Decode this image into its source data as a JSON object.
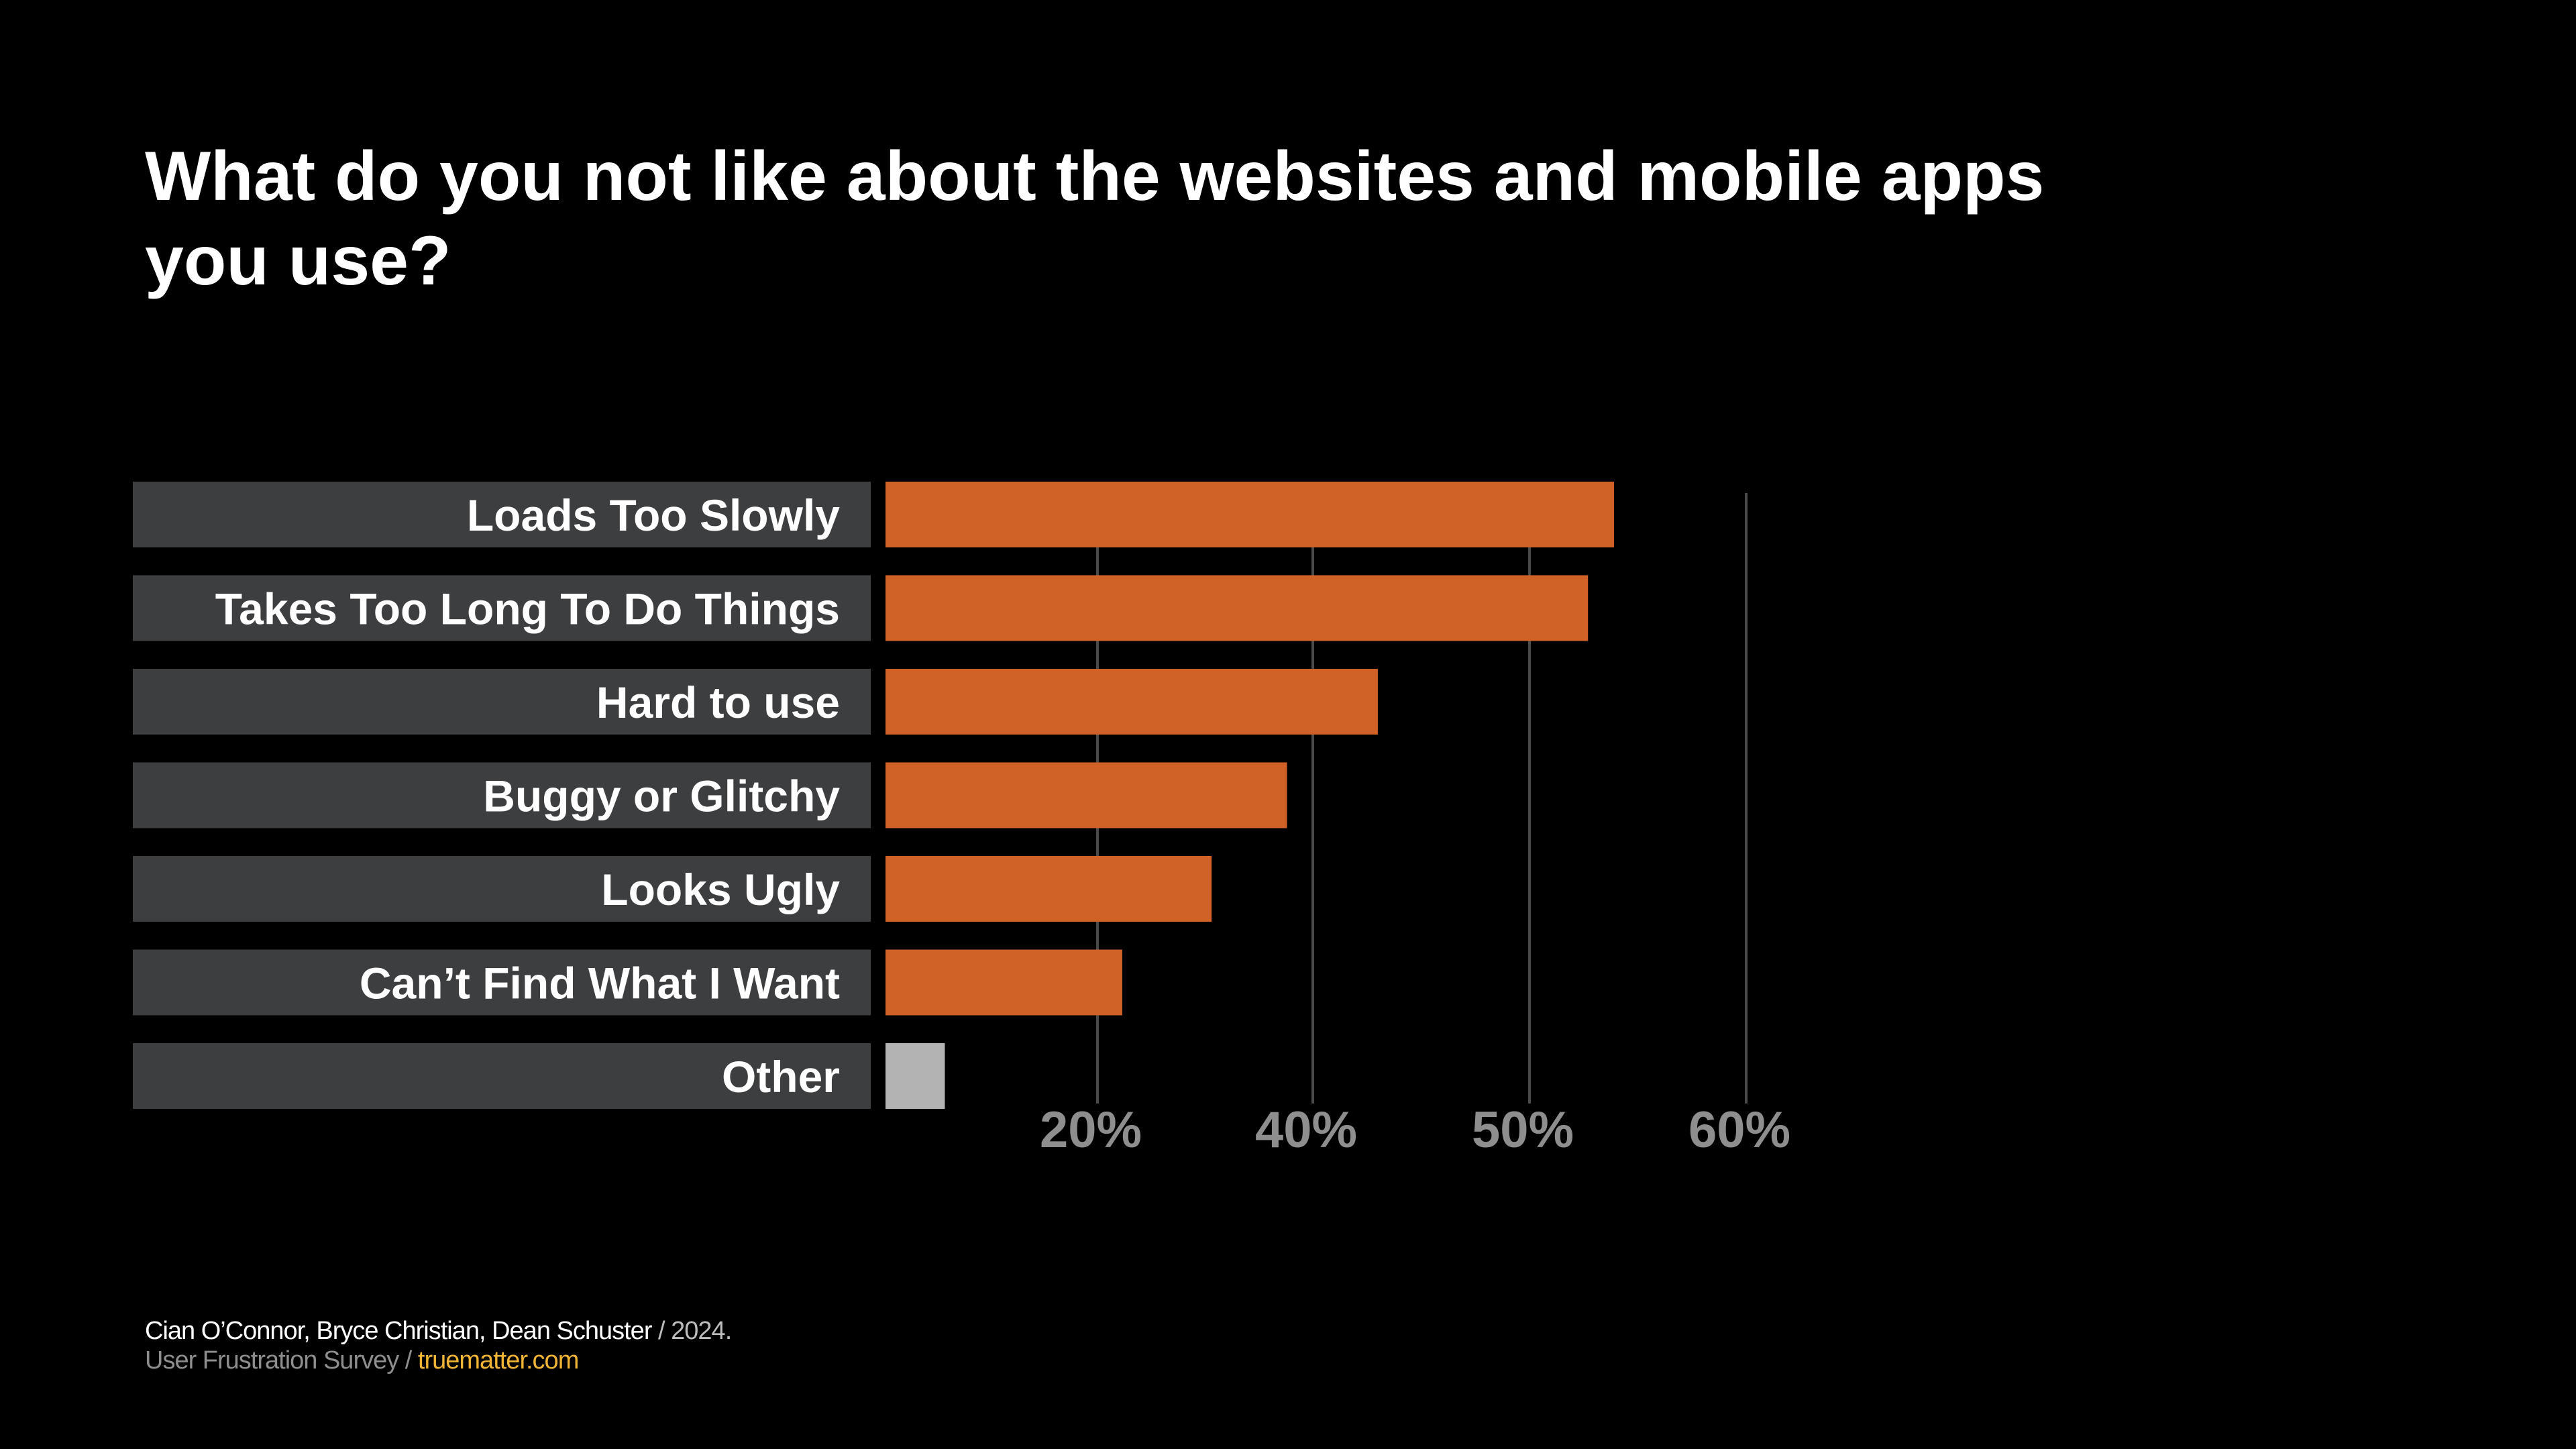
{
  "title": "What do you not like about the websites and mobile apps you use?",
  "chart_data": {
    "type": "bar",
    "orientation": "horizontal",
    "title": "What do you not like about the websites and mobile apps you use?",
    "categories": [
      "Loads Too Slowly",
      "Takes Too Long To Do Things",
      "Hard to use",
      "Buggy or  Glitchy",
      "Looks Ugly",
      "Can’t Find What I Want",
      "Other"
    ],
    "values": [
      53.9,
      52.7,
      43.0,
      37.6,
      30.6,
      22.3,
      5.6
    ],
    "x_ticks": [
      "20%",
      "40%",
      "50%",
      "60%"
    ],
    "x_tick_values": [
      20,
      40,
      50,
      60
    ],
    "grid": true,
    "colors": {
      "bar": "#d06228",
      "other_bar": "#b3b3b3",
      "label_box": "#3d3e40",
      "grid": "#4a4a4a",
      "tick": "#8e8e8e",
      "background": "#000000"
    }
  },
  "footer": {
    "authors": "Cian O’Connor, Bryce Christian, Dean Schuster",
    "sep1": " / ",
    "year": "2024.",
    "survey": "User Frustration Survey",
    "sep2": " / ",
    "link": "truematter.com"
  }
}
